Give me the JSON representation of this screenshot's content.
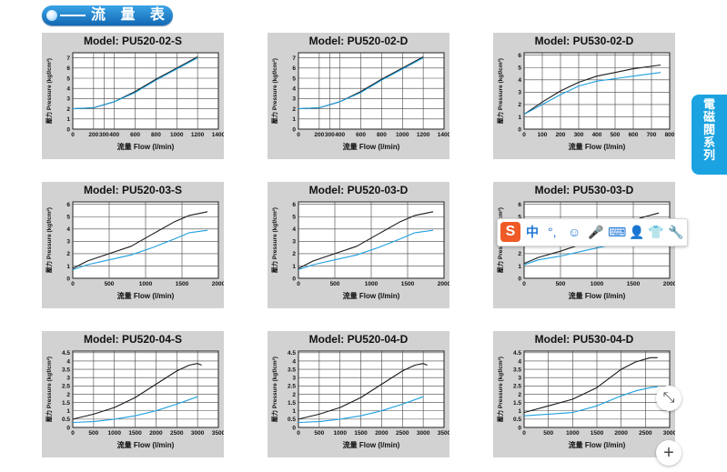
{
  "banner": {
    "title": "流 量 表"
  },
  "side_tab": {
    "chars": [
      "電",
      "磁",
      "閥",
      "系",
      "列"
    ]
  },
  "ime": {
    "icons": [
      "中",
      "°,",
      "☺",
      "🎤",
      "⌨",
      "👤",
      "👕",
      "🔧"
    ]
  },
  "buttons": {
    "collapse_label": "⤡",
    "add_label": "+"
  },
  "colors": {
    "black_series": "#1a1a1a",
    "blue_series": "#1ea0e0",
    "panel_bg": "#d2d2d2"
  },
  "chart_data": [
    {
      "title": "Model: PU520-02-S",
      "type": "line",
      "xlabel": "流量 Flow (l/min)",
      "ylabel": "壓力 Pressure (kgf/cm²)",
      "xlim": [
        0,
        1400
      ],
      "ylim": [
        0,
        7.5
      ],
      "xticks": [
        "0",
        "200",
        "300",
        "400",
        "600",
        "800",
        "1000",
        "1200",
        "1400"
      ],
      "xtick_vals": [
        0,
        200,
        300,
        400,
        600,
        800,
        1000,
        1200,
        1400
      ],
      "yticks": [
        "0",
        "1",
        "2",
        "3",
        "4",
        "5",
        "6",
        "7"
      ],
      "ytick_vals": [
        0,
        1,
        2,
        3,
        4,
        5,
        6,
        7
      ],
      "series": [
        {
          "color": "black",
          "x": [
            0,
            200,
            400,
            600,
            800,
            1000,
            1200
          ],
          "y": [
            2.0,
            2.1,
            2.7,
            3.7,
            4.9,
            6.0,
            7.1
          ]
        },
        {
          "color": "blue",
          "x": [
            0,
            200,
            400,
            600,
            800,
            1000,
            1200
          ],
          "y": [
            2.0,
            2.1,
            2.7,
            3.6,
            4.8,
            5.9,
            7.0
          ]
        }
      ]
    },
    {
      "title": "Model: PU520-02-D",
      "type": "line",
      "xlabel": "流量 Flow (l/min)",
      "ylabel": "壓力 Pressure (kgf/cm²)",
      "xlim": [
        0,
        1400
      ],
      "ylim": [
        0,
        7.5
      ],
      "xticks": [
        "0",
        "200",
        "300",
        "400",
        "600",
        "800",
        "1000",
        "1200",
        "1400"
      ],
      "xtick_vals": [
        0,
        200,
        300,
        400,
        600,
        800,
        1000,
        1200,
        1400
      ],
      "yticks": [
        "0",
        "1",
        "2",
        "3",
        "4",
        "5",
        "6",
        "7"
      ],
      "ytick_vals": [
        0,
        1,
        2,
        3,
        4,
        5,
        6,
        7
      ],
      "series": [
        {
          "color": "black",
          "x": [
            0,
            200,
            400,
            600,
            800,
            1000,
            1200
          ],
          "y": [
            2.0,
            2.1,
            2.7,
            3.7,
            4.9,
            6.0,
            7.1
          ]
        },
        {
          "color": "blue",
          "x": [
            0,
            200,
            400,
            600,
            800,
            1000,
            1200
          ],
          "y": [
            2.0,
            2.1,
            2.7,
            3.6,
            4.8,
            5.9,
            7.0
          ]
        }
      ]
    },
    {
      "title": "Model: PU530-02-D",
      "type": "line",
      "xlabel": "流量 Flow (l/min)",
      "ylabel": "壓力 Pressure (kgf/cm²)",
      "xlim": [
        0,
        800
      ],
      "ylim": [
        0,
        6.2
      ],
      "xticks": [
        "0",
        "100",
        "200",
        "300",
        "400",
        "500",
        "600",
        "700",
        "800"
      ],
      "xtick_vals": [
        0,
        100,
        200,
        300,
        400,
        500,
        600,
        700,
        800
      ],
      "yticks": [
        "0",
        "1",
        "2",
        "3",
        "4",
        "5",
        "6"
      ],
      "ytick_vals": [
        0,
        1,
        2,
        3,
        4,
        5,
        6
      ],
      "series": [
        {
          "color": "black",
          "x": [
            0,
            100,
            200,
            300,
            400,
            500,
            600,
            750
          ],
          "y": [
            1.2,
            2.2,
            3.1,
            3.8,
            4.3,
            4.6,
            4.9,
            5.2
          ]
        },
        {
          "color": "blue",
          "x": [
            0,
            100,
            200,
            300,
            400,
            500,
            600,
            750
          ],
          "y": [
            1.2,
            2.0,
            2.8,
            3.5,
            3.9,
            4.1,
            4.3,
            4.6
          ]
        }
      ]
    },
    {
      "title": "Model: PU520-03-S",
      "type": "line",
      "xlabel": "流量 Flow (l/min)",
      "ylabel": "壓力 Pressure (kgf/cm²)",
      "xlim": [
        0,
        2000
      ],
      "ylim": [
        0,
        6.2
      ],
      "xticks": [
        "0",
        "500",
        "1000",
        "1500",
        "2000"
      ],
      "xtick_vals": [
        0,
        500,
        1000,
        1500,
        2000
      ],
      "yticks": [
        "0",
        "1",
        "2",
        "3",
        "4",
        "5",
        "6"
      ],
      "ytick_vals": [
        0,
        1,
        2,
        3,
        4,
        5,
        6
      ],
      "series": [
        {
          "color": "black",
          "x": [
            0,
            200,
            500,
            800,
            1100,
            1400,
            1600,
            1850
          ],
          "y": [
            0.8,
            1.4,
            2.0,
            2.6,
            3.6,
            4.6,
            5.1,
            5.4
          ]
        },
        {
          "color": "blue",
          "x": [
            0,
            200,
            500,
            800,
            1100,
            1400,
            1600,
            1850
          ],
          "y": [
            0.7,
            1.1,
            1.5,
            1.9,
            2.5,
            3.2,
            3.7,
            3.9
          ]
        }
      ]
    },
    {
      "title": "Model: PU520-03-D",
      "type": "line",
      "xlabel": "流量 Flow (l/min)",
      "ylabel": "壓力 Pressure (kgf/cm²)",
      "xlim": [
        0,
        2000
      ],
      "ylim": [
        0,
        6.2
      ],
      "xticks": [
        "0",
        "500",
        "1000",
        "1500",
        "2000"
      ],
      "xtick_vals": [
        0,
        500,
        1000,
        1500,
        2000
      ],
      "yticks": [
        "0",
        "1",
        "2",
        "3",
        "4",
        "5",
        "6"
      ],
      "ytick_vals": [
        0,
        1,
        2,
        3,
        4,
        5,
        6
      ],
      "series": [
        {
          "color": "black",
          "x": [
            0,
            200,
            500,
            800,
            1100,
            1400,
            1600,
            1850
          ],
          "y": [
            0.8,
            1.4,
            2.0,
            2.6,
            3.6,
            4.6,
            5.1,
            5.4
          ]
        },
        {
          "color": "blue",
          "x": [
            0,
            200,
            500,
            800,
            1100,
            1400,
            1600,
            1850
          ],
          "y": [
            0.7,
            1.1,
            1.5,
            1.9,
            2.5,
            3.2,
            3.7,
            3.9
          ]
        }
      ]
    },
    {
      "title": "Model: PU530-03-D",
      "type": "line",
      "xlabel": "流量 Flow (l/min)",
      "ylabel": "壓力 Pressure (kgf/cm²)",
      "xlim": [
        0,
        2000
      ],
      "ylim": [
        0,
        6.2
      ],
      "xticks": [
        "0",
        "500",
        "1000",
        "1500",
        "2000"
      ],
      "xtick_vals": [
        0,
        500,
        1000,
        1500,
        2000
      ],
      "yticks": [
        "0",
        "1",
        "2",
        "3",
        "4",
        "5",
        "6"
      ],
      "ytick_vals": [
        0,
        1,
        2,
        3,
        4,
        5,
        6
      ],
      "series": [
        {
          "color": "black",
          "x": [
            0,
            200,
            500,
            800,
            1100,
            1400,
            1600,
            1850
          ],
          "y": [
            1.2,
            1.7,
            2.2,
            2.8,
            3.5,
            4.3,
            4.9,
            5.3
          ]
        },
        {
          "color": "blue",
          "x": [
            0,
            200,
            500,
            800,
            1100,
            1400,
            1600,
            1850
          ],
          "y": [
            1.1,
            1.5,
            1.8,
            2.2,
            2.6,
            3.0,
            3.3,
            3.6
          ]
        }
      ]
    },
    {
      "title": "Model: PU520-04-S",
      "type": "line",
      "xlabel": "流量 Flow (l/min)",
      "ylabel": "壓力 Pressure (kgf/cm²)",
      "xlim": [
        0,
        3500
      ],
      "ylim": [
        0,
        4.6
      ],
      "xticks": [
        "0",
        "500",
        "1000",
        "1500",
        "2000",
        "2500",
        "3000",
        "3500"
      ],
      "xtick_vals": [
        0,
        500,
        1000,
        1500,
        2000,
        2500,
        3000,
        3500
      ],
      "yticks": [
        "0",
        "0.5",
        "1",
        "1.5",
        "2",
        "2.5",
        "3",
        "3.5",
        "4",
        "4.5"
      ],
      "ytick_vals": [
        0,
        0.5,
        1,
        1.5,
        2,
        2.5,
        3,
        3.5,
        4,
        4.5
      ],
      "series": [
        {
          "color": "black",
          "x": [
            0,
            500,
            1000,
            1500,
            2000,
            2500,
            2800,
            3000,
            3100
          ],
          "y": [
            0.5,
            0.8,
            1.2,
            1.8,
            2.6,
            3.4,
            3.75,
            3.85,
            3.75
          ]
        },
        {
          "color": "blue",
          "x": [
            0,
            500,
            1000,
            1500,
            2000,
            2500,
            3000
          ],
          "y": [
            0.3,
            0.35,
            0.5,
            0.7,
            1.0,
            1.4,
            1.85
          ]
        }
      ]
    },
    {
      "title": "Model: PU520-04-D",
      "type": "line",
      "xlabel": "流量 Flow (l/min)",
      "ylabel": "壓力 Pressure (kgf/cm²)",
      "xlim": [
        0,
        3500
      ],
      "ylim": [
        0,
        4.6
      ],
      "xticks": [
        "0",
        "500",
        "1000",
        "1500",
        "2000",
        "2500",
        "3000",
        "3500"
      ],
      "xtick_vals": [
        0,
        500,
        1000,
        1500,
        2000,
        2500,
        3000,
        3500
      ],
      "yticks": [
        "0",
        "0.5",
        "1",
        "1.5",
        "2",
        "2.5",
        "3",
        "3.5",
        "4",
        "4.5"
      ],
      "ytick_vals": [
        0,
        0.5,
        1,
        1.5,
        2,
        2.5,
        3,
        3.5,
        4,
        4.5
      ],
      "series": [
        {
          "color": "black",
          "x": [
            0,
            500,
            1000,
            1500,
            2000,
            2500,
            2800,
            3000,
            3100
          ],
          "y": [
            0.5,
            0.8,
            1.2,
            1.8,
            2.6,
            3.4,
            3.75,
            3.85,
            3.75
          ]
        },
        {
          "color": "blue",
          "x": [
            0,
            500,
            1000,
            1500,
            2000,
            2500,
            3000
          ],
          "y": [
            0.3,
            0.35,
            0.5,
            0.7,
            1.0,
            1.4,
            1.85
          ]
        }
      ]
    },
    {
      "title": "Model: PU530-04-D",
      "type": "line",
      "xlabel": "流量 Flow (l/min)",
      "ylabel": "壓力 Pressure (kgf/cm²)",
      "xlim": [
        0,
        3000
      ],
      "ylim": [
        0,
        4.6
      ],
      "xticks": [
        "0",
        "500",
        "1000",
        "1500",
        "2000",
        "2500",
        "3000"
      ],
      "xtick_vals": [
        0,
        500,
        1000,
        1500,
        2000,
        2500,
        3000
      ],
      "yticks": [
        "0",
        "0.5",
        "1",
        "1.5",
        "2",
        "2.5",
        "3",
        "3.5",
        "4",
        "4.5"
      ],
      "ytick_vals": [
        0,
        0.5,
        1,
        1.5,
        2,
        2.5,
        3,
        3.5,
        4,
        4.5
      ],
      "series": [
        {
          "color": "black",
          "x": [
            0,
            500,
            1000,
            1500,
            2000,
            2300,
            2600,
            2750
          ],
          "y": [
            0.9,
            1.3,
            1.7,
            2.4,
            3.5,
            3.95,
            4.2,
            4.2
          ]
        },
        {
          "color": "blue",
          "x": [
            0,
            500,
            1000,
            1500,
            2000,
            2300,
            2600,
            2750
          ],
          "y": [
            0.7,
            0.8,
            0.9,
            1.3,
            1.9,
            2.2,
            2.4,
            2.45
          ]
        }
      ]
    }
  ]
}
